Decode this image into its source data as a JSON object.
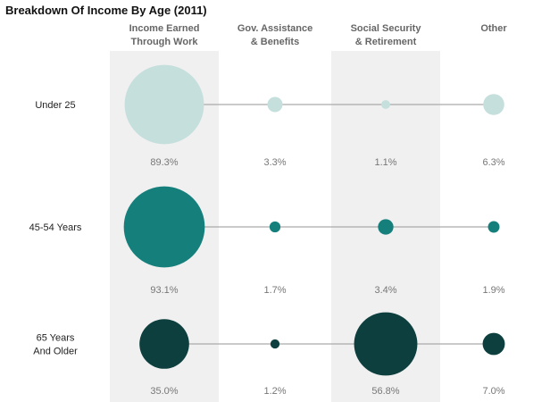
{
  "chart_data": {
    "type": "bubble",
    "title": "Breakdown Of Income By Age (2011)",
    "categories": [
      [
        "Income Earned",
        "Through Work"
      ],
      [
        "Gov. Assistance",
        "& Benefits"
      ],
      [
        "Social Security",
        "& Retirement"
      ],
      [
        "Other"
      ]
    ],
    "series": [
      {
        "name": [
          "Under 25"
        ],
        "color": "#c5dfdd",
        "values": [
          89.3,
          3.3,
          1.1,
          6.3
        ],
        "labels": [
          "89.3%",
          "3.3%",
          "1.1%",
          "6.3%"
        ]
      },
      {
        "name": [
          "45-54 Years"
        ],
        "color": "#157f7c",
        "values": [
          93.1,
          1.7,
          3.4,
          1.9
        ],
        "labels": [
          "93.1%",
          "1.7%",
          "3.4%",
          "1.9%"
        ]
      },
      {
        "name": [
          "65 Years",
          "And Older"
        ],
        "color": "#0d3f3e",
        "values": [
          35.0,
          1.2,
          56.8,
          7.0
        ],
        "labels": [
          "35.0%",
          "1.2%",
          "56.8%",
          "7.0%"
        ]
      }
    ],
    "unit": "%",
    "shaded_columns": [
      0,
      2
    ],
    "colors": {
      "shade": "#f0f0f0",
      "connector": "#aaaaaa"
    }
  }
}
